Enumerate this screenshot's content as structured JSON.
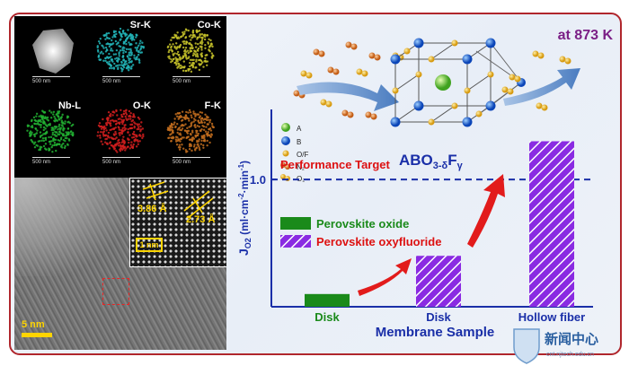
{
  "eds_panels": [
    {
      "label": "",
      "scale": "500 nm",
      "color": "#e6e6e6"
    },
    {
      "label": "Sr-K",
      "scale": "500 nm",
      "color": "#22b5b8"
    },
    {
      "label": "Co-K",
      "scale": "500 nm",
      "color": "#c7c32a"
    },
    {
      "label": "Nb-L",
      "scale": "500 nm",
      "color": "#22b133"
    },
    {
      "label": "O-K",
      "scale": "500 nm",
      "color": "#d21f1f"
    },
    {
      "label": "F-K",
      "scale": "500 nm",
      "color": "#c26d1e"
    }
  ],
  "tem": {
    "d1": "3.86 Å",
    "d2": "2.73 Å",
    "inset_scale": "1 nm",
    "scale": "5 nm"
  },
  "temperature": "at 873 K",
  "legend_structure": [
    "A",
    "B",
    "O/F",
    "N₂",
    "O₂"
  ],
  "formula": {
    "base": "ABO",
    "sub": "3-δ",
    "mid": "F",
    "sub2": "γ"
  },
  "chart_data": {
    "type": "bar",
    "categories": [
      "Disk",
      "Disk",
      "Hollow fiber"
    ],
    "series": [
      {
        "name": "Perovskite oxide",
        "values": [
          0.1,
          null,
          null
        ],
        "color": "#1a8a1a"
      },
      {
        "name": "Perovskite oxyfluoride",
        "values": [
          null,
          0.4,
          1.3
        ],
        "color": "#8a2be2"
      }
    ],
    "xlabel": "Membrane Sample",
    "ylabel": "J_O2 (ml·cm⁻²·min⁻¹)",
    "ylabel_parts": {
      "j": "J",
      "sub": "O2",
      "unit": " (ml·cm",
      "exp1": "-2",
      "unit2": "·min",
      "exp2": "-1",
      "close": ")"
    },
    "yticks": [
      1.0
    ],
    "ytick_labels": [
      "1.0"
    ],
    "ylim": [
      0,
      1.55
    ],
    "reference_line": {
      "y": 1.0,
      "label": "Performance Target"
    }
  },
  "logo": {
    "cn": "新闻中心",
    "url": "cnt.njtech.edu.cn"
  }
}
